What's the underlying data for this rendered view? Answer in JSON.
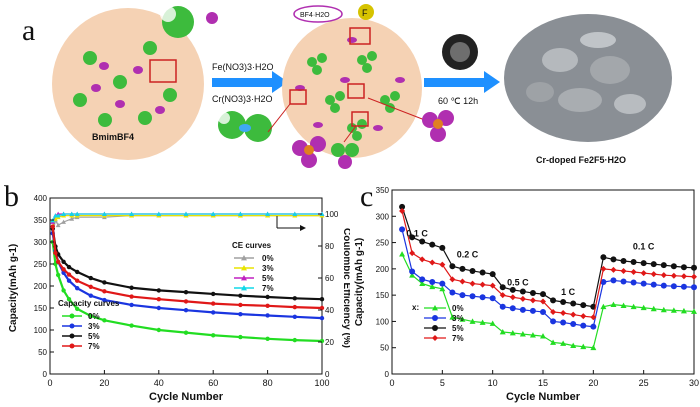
{
  "panels": {
    "a": "a",
    "b": "b",
    "c": "c"
  },
  "schematic": {
    "precursor_label": "BmimBF4",
    "reagent_fe": "Fe(NO3)3·H2O",
    "reagent_cr": "Cr(NO3)3·H2O",
    "bf4_label": "BF4·H2O",
    "fluoride_label": "F",
    "condition": "60 ℃ 12h",
    "product_label": "Cr-doped Fe2F5·H2O",
    "colors": {
      "sphere": "#f5d2b4",
      "ion_green": "#3dbb3d",
      "ion_purple": "#b02fb0",
      "arrow": "#1e90ff",
      "sem": "#8a8f95"
    }
  },
  "chart_data": [
    {
      "type": "scatter",
      "panel": "b",
      "xlabel": "Cycle Number",
      "ylabel": "Capacity(mAh g-1)",
      "ylabel_right": "Coulombic Efficiency (%)",
      "xlim": [
        0,
        100
      ],
      "ylim": [
        0,
        400
      ],
      "ylim_right": [
        0,
        110
      ],
      "x_ticks": [
        "0",
        "20",
        "40",
        "60",
        "80",
        "100"
      ],
      "y_ticks": [
        "0",
        "50",
        "100",
        "150",
        "200",
        "250",
        "300",
        "350",
        "400"
      ],
      "y_ticks_right": [
        "0",
        "20",
        "40",
        "60",
        "80",
        "100"
      ],
      "legend_capacity_title": "Capacity curves",
      "legend_ce_title": "CE curves",
      "capacity_series": [
        {
          "name": "0%",
          "color": "#22dd22",
          "x": [
            1,
            2,
            3,
            5,
            7,
            10,
            15,
            20,
            30,
            40,
            50,
            60,
            70,
            80,
            90,
            100
          ],
          "values": [
            300,
            250,
            225,
            190,
            170,
            148,
            132,
            122,
            110,
            100,
            94,
            88,
            84,
            80,
            77,
            75
          ]
        },
        {
          "name": "3%",
          "color": "#1a35e0",
          "x": [
            1,
            2,
            3,
            5,
            7,
            10,
            15,
            20,
            30,
            40,
            50,
            60,
            70,
            80,
            90,
            100
          ],
          "values": [
            320,
            280,
            255,
            230,
            212,
            195,
            178,
            168,
            157,
            150,
            145,
            140,
            136,
            133,
            130,
            127
          ]
        },
        {
          "name": "5%",
          "color": "#111111",
          "x": [
            1,
            2,
            3,
            5,
            7,
            10,
            15,
            20,
            30,
            40,
            50,
            60,
            70,
            80,
            90,
            100
          ],
          "values": [
            330,
            290,
            272,
            255,
            243,
            232,
            218,
            208,
            196,
            190,
            186,
            182,
            178,
            175,
            172,
            170
          ]
        },
        {
          "name": "7%",
          "color": "#e01818",
          "x": [
            1,
            2,
            3,
            5,
            7,
            10,
            15,
            20,
            30,
            40,
            50,
            60,
            70,
            80,
            90,
            100
          ],
          "values": [
            335,
            275,
            255,
            238,
            226,
            212,
            198,
            188,
            176,
            170,
            165,
            160,
            157,
            155,
            152,
            150
          ]
        }
      ],
      "ce_series": [
        {
          "name": "0%",
          "color": "#a0a0a0",
          "x": [
            1,
            2,
            3,
            5,
            8,
            10,
            20,
            30,
            40,
            50,
            60,
            70,
            80,
            90,
            100
          ],
          "values": [
            88,
            96,
            93,
            95,
            97,
            98,
            98,
            99,
            99,
            99,
            99,
            99,
            99,
            99,
            99
          ]
        },
        {
          "name": "3%",
          "color": "#e8e400",
          "x": [
            1,
            2,
            3,
            5,
            8,
            10,
            20,
            30,
            40,
            50,
            60,
            70,
            80,
            90,
            100
          ],
          "values": [
            92,
            97,
            98,
            99,
            99,
            99,
            99,
            99,
            99,
            99,
            99,
            99,
            99,
            99,
            99
          ]
        },
        {
          "name": "5%",
          "color": "#c020c0",
          "x": [
            1,
            2,
            3,
            5,
            8,
            10,
            20,
            30,
            40,
            50,
            60,
            70,
            80,
            90,
            100
          ],
          "values": [
            95,
            99,
            100,
            100,
            100,
            100,
            100,
            100,
            100,
            100,
            100,
            100,
            100,
            100,
            100
          ]
        },
        {
          "name": "7%",
          "color": "#10d8e8",
          "x": [
            1,
            2,
            3,
            5,
            8,
            10,
            20,
            30,
            40,
            50,
            60,
            70,
            80,
            90,
            100
          ],
          "values": [
            96,
            99,
            99,
            100,
            100,
            100,
            100,
            100,
            100,
            100,
            100,
            100,
            100,
            100,
            100
          ]
        }
      ]
    },
    {
      "type": "line",
      "panel": "c",
      "xlabel": "Cycle Number",
      "ylabel": "Capacity(mAh g-1)",
      "xlim": [
        0,
        30
      ],
      "ylim": [
        0,
        350
      ],
      "x_ticks": [
        "0",
        "5",
        "10",
        "15",
        "20",
        "25",
        "30"
      ],
      "y_ticks": [
        "0",
        "50",
        "100",
        "150",
        "200",
        "250",
        "300",
        "350"
      ],
      "legend_prefix": "x:",
      "rate_labels": [
        {
          "text": "0.1 C",
          "x": 2.5,
          "y": 262
        },
        {
          "text": "0.2 C",
          "x": 7.5,
          "y": 222
        },
        {
          "text": "0.5 C",
          "x": 12.5,
          "y": 168
        },
        {
          "text": "1 C",
          "x": 17.5,
          "y": 150
        },
        {
          "text": "0.1 C",
          "x": 25,
          "y": 237
        }
      ],
      "x": [
        1,
        2,
        3,
        4,
        5,
        6,
        7,
        8,
        9,
        10,
        11,
        12,
        13,
        14,
        15,
        16,
        17,
        18,
        19,
        20,
        21,
        22,
        23,
        24,
        25,
        26,
        27,
        28,
        29,
        30
      ],
      "series": [
        {
          "name": "0%",
          "color": "#22dd22",
          "marker": "triangle",
          "values": [
            228,
            188,
            172,
            166,
            162,
            108,
            104,
            100,
            98,
            96,
            80,
            78,
            76,
            74,
            72,
            60,
            58,
            54,
            52,
            50,
            128,
            132,
            130,
            128,
            126,
            124,
            122,
            121,
            120,
            119
          ]
        },
        {
          "name": "3%",
          "color": "#1a35e0",
          "marker": "circle",
          "values": [
            275,
            195,
            180,
            175,
            172,
            155,
            150,
            148,
            146,
            144,
            128,
            125,
            122,
            120,
            118,
            100,
            98,
            95,
            92,
            90,
            175,
            178,
            176,
            174,
            172,
            170,
            168,
            167,
            166,
            165
          ]
        },
        {
          "name": "5%",
          "color": "#111111",
          "marker": "circle",
          "values": [
            318,
            260,
            252,
            246,
            240,
            205,
            200,
            196,
            193,
            190,
            165,
            160,
            157,
            154,
            152,
            140,
            137,
            134,
            131,
            128,
            222,
            218,
            215,
            213,
            211,
            209,
            207,
            205,
            203,
            202
          ]
        },
        {
          "name": "7%",
          "color": "#e01818",
          "marker": "diamond",
          "values": [
            310,
            230,
            218,
            212,
            208,
            180,
            176,
            172,
            170,
            168,
            150,
            146,
            143,
            140,
            138,
            118,
            116,
            113,
            110,
            108,
            200,
            198,
            196,
            194,
            192,
            190,
            188,
            187,
            186,
            185
          ]
        }
      ]
    }
  ]
}
